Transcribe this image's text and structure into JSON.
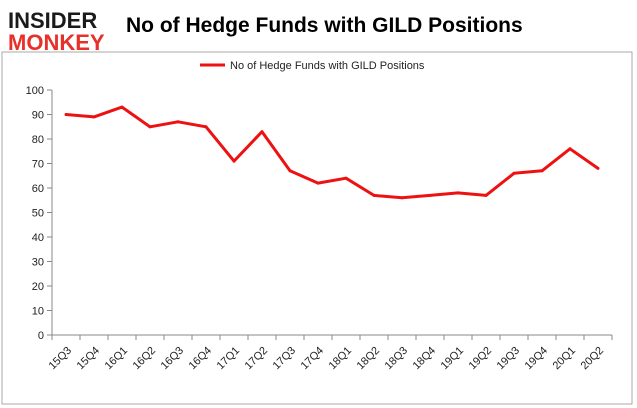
{
  "logo": {
    "line1": "INSIDER",
    "line2": "MONKEY"
  },
  "chart_data": {
    "type": "line",
    "title": "No of Hedge Funds with GILD Positions",
    "xlabel": "",
    "ylabel": "",
    "categories": [
      "15Q3",
      "15Q4",
      "16Q1",
      "16Q2",
      "16Q3",
      "16Q4",
      "17Q1",
      "17Q2",
      "17Q3",
      "17Q4",
      "18Q1",
      "18Q2",
      "18Q3",
      "18Q4",
      "19Q1",
      "19Q2",
      "19Q3",
      "19Q4",
      "20Q1",
      "20Q2"
    ],
    "series": [
      {
        "name": "No of Hedge Funds with GILD Positions",
        "values": [
          90,
          89,
          93,
          85,
          87,
          85,
          71,
          83,
          67,
          62,
          64,
          57,
          56,
          57,
          58,
          57,
          66,
          67,
          76,
          68
        ]
      }
    ],
    "ylim": [
      0,
      100
    ],
    "yticks": [
      0,
      10,
      20,
      30,
      40,
      50,
      60,
      70,
      80,
      90,
      100
    ],
    "grid": false,
    "legend": "top-center",
    "colors": {
      "line": "#ee1111",
      "axis": "#888888",
      "border": "#aaaaaa"
    }
  }
}
